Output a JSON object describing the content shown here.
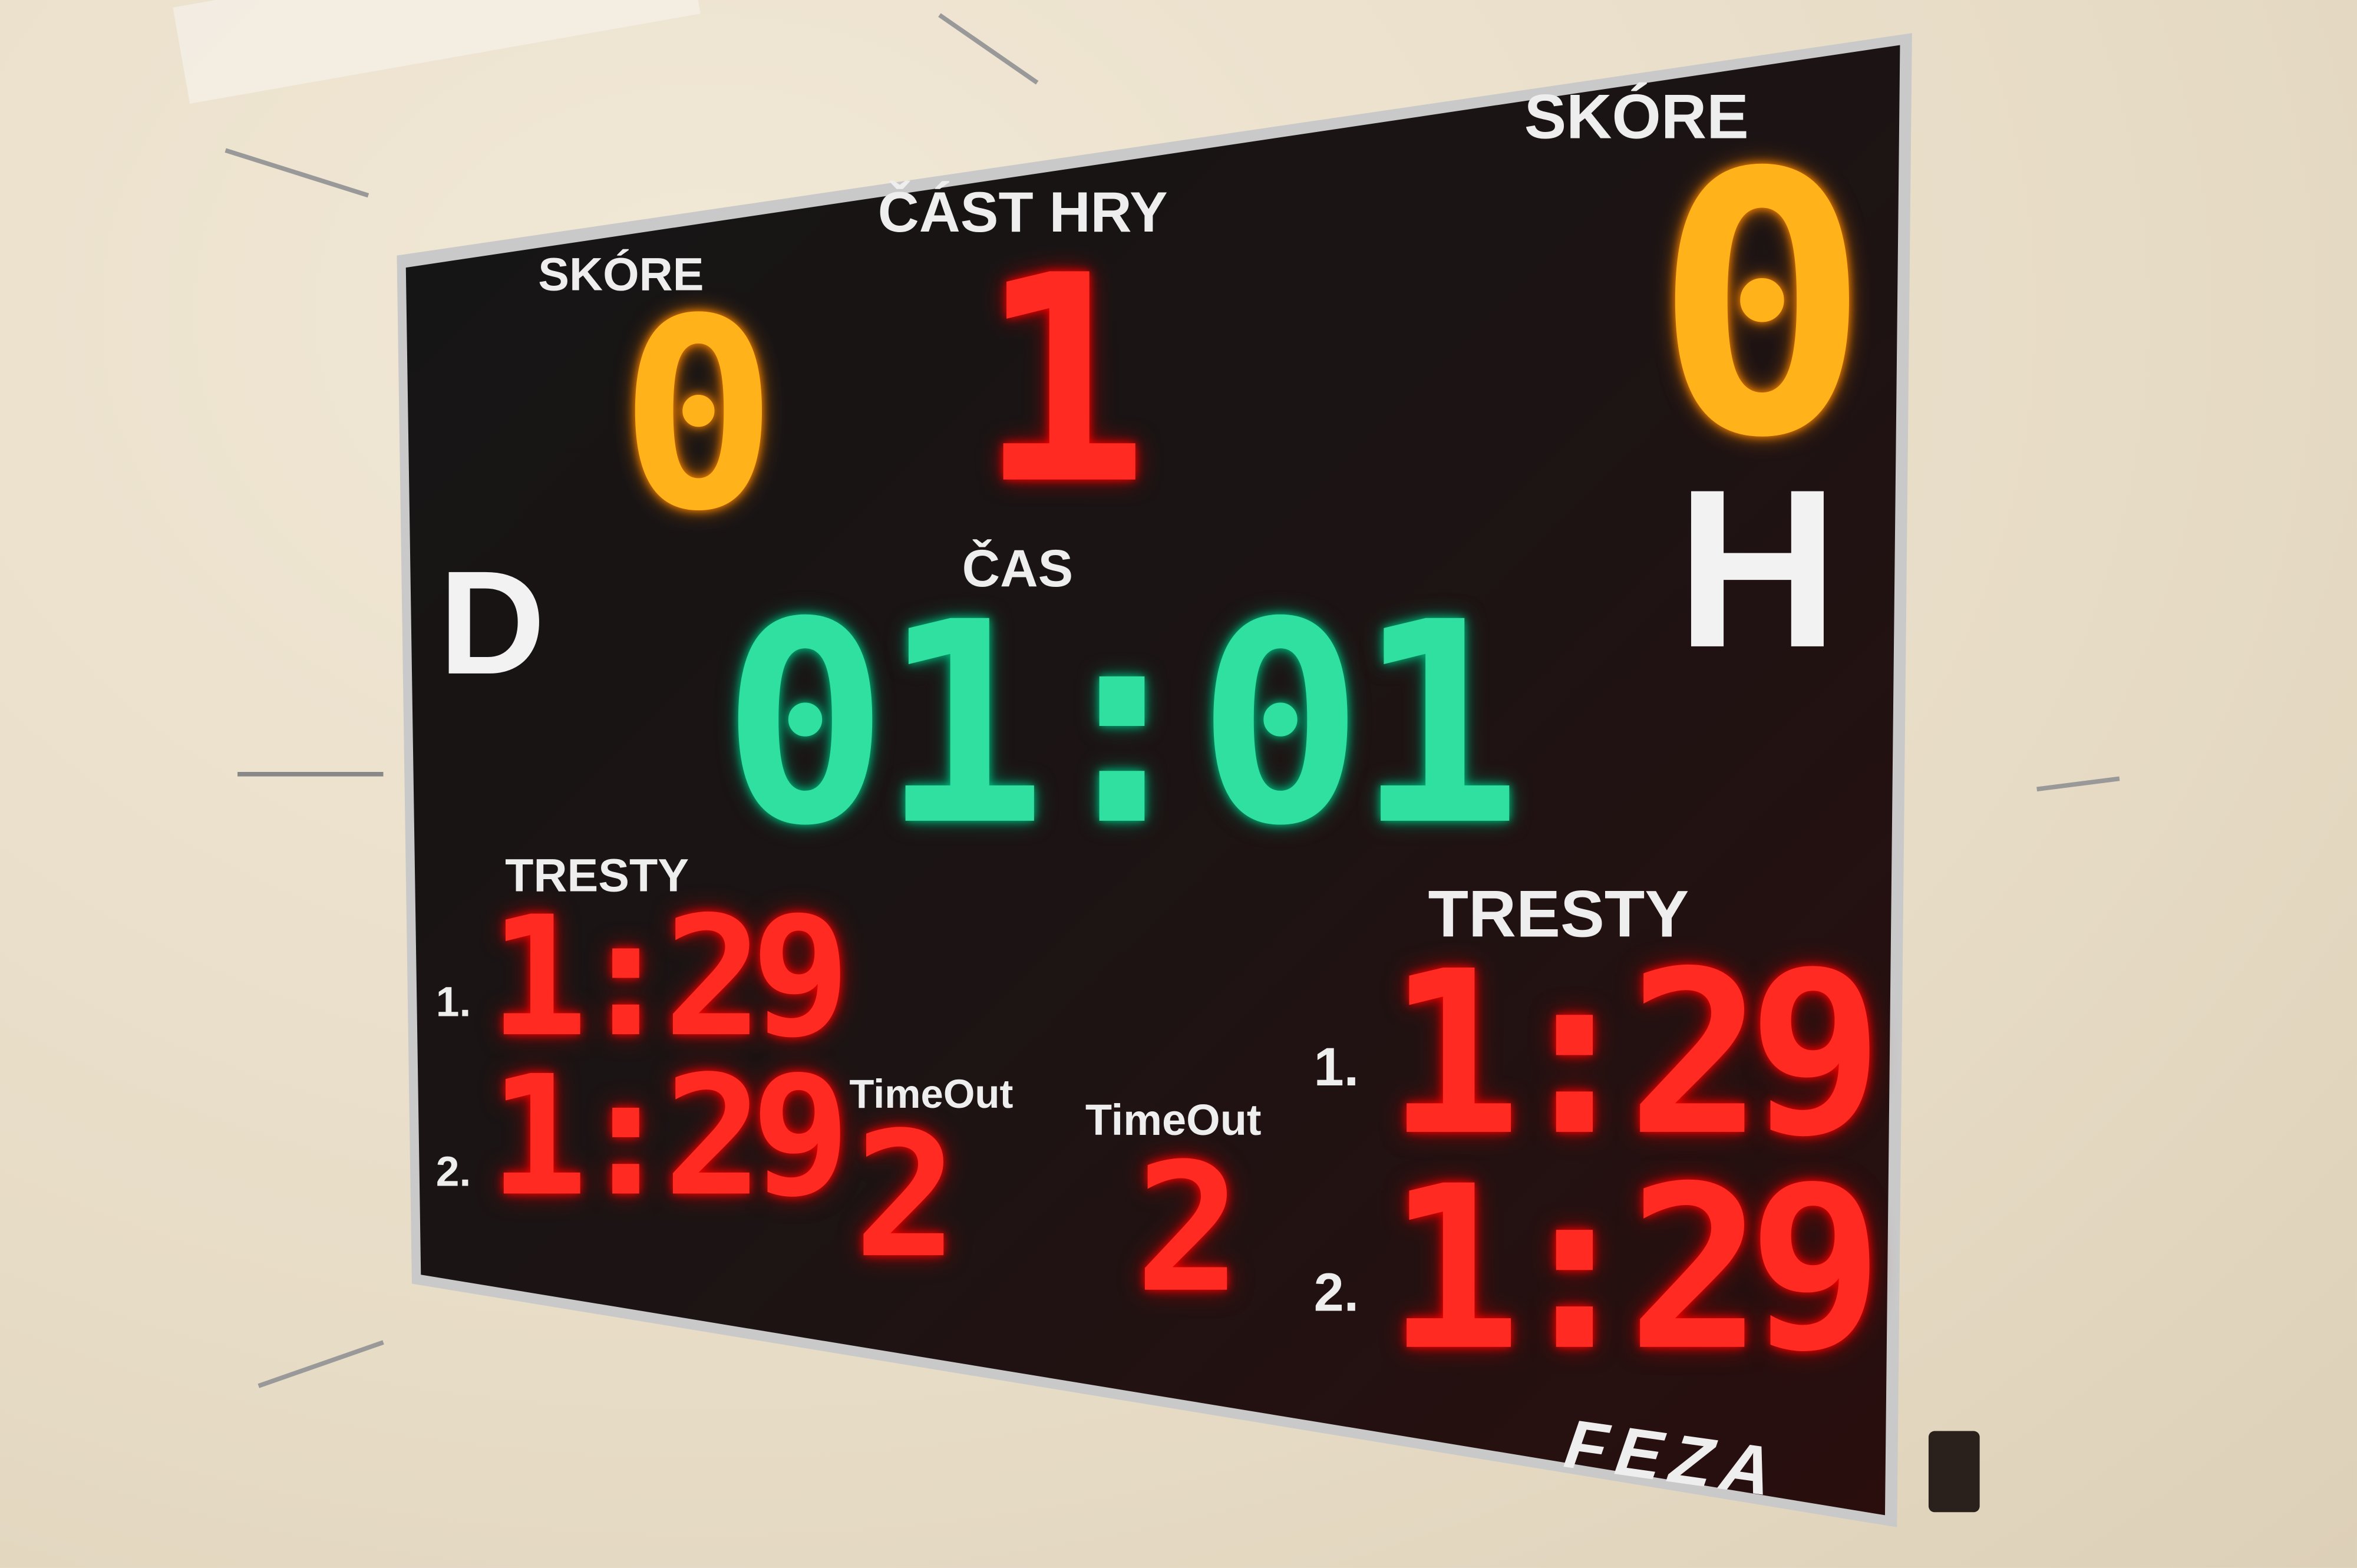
{
  "home": {
    "score_label": "SKÓRE",
    "score": "0",
    "side_letter": "D",
    "penalties_label": "TRESTY",
    "penalties": [
      {
        "index": "1.",
        "time": "1:29"
      },
      {
        "index": "2.",
        "time": "1:29"
      }
    ],
    "timeout_label": "TimeOut",
    "timeouts": "2"
  },
  "period": {
    "label": "ČÁST HRY",
    "value": "1"
  },
  "clock": {
    "label": "ČAS",
    "value": "01:01"
  },
  "away": {
    "score_label": "SKÓRE",
    "score": "0",
    "side_letter": "H",
    "penalties_label": "TRESTY",
    "penalties": [
      {
        "index": "1.",
        "time": "1:29"
      },
      {
        "index": "2.",
        "time": "1:29"
      }
    ],
    "timeout_label": "TimeOut",
    "timeouts": "2"
  },
  "brand": "FEZA",
  "colors": {
    "score": "#ffb21a",
    "clock": "#2fe0a0",
    "penalty": "#ff2a22",
    "board": "#1a1010"
  }
}
